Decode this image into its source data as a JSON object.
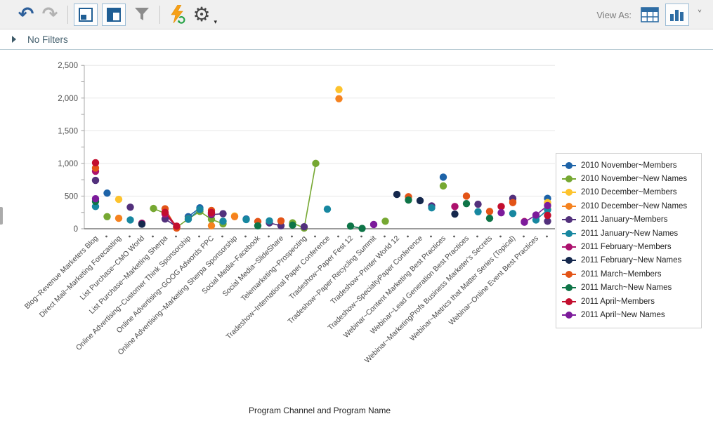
{
  "toolbar": {
    "view_as_label": "View As:",
    "icons": [
      "undo-icon",
      "redo-icon",
      "maximize-report-icon",
      "layout-panel-icon",
      "filter-funnel-icon",
      "run-refresh-icon",
      "settings-gear-icon",
      "view-as-table-icon",
      "view-as-chart-icon",
      "view-as-dropdown-chevron"
    ]
  },
  "filter_bar": {
    "label": "No Filters",
    "expander_icon": "right-triangle-icon"
  },
  "chart_data": {
    "type": "scatter",
    "title": "",
    "xlabel": "Program Channel and Program Name",
    "ylabel": "",
    "ylim": [
      0,
      2500
    ],
    "yticks": [
      0,
      500,
      1000,
      1500,
      2000,
      2500
    ],
    "ytick_labels": [
      "0",
      "500",
      "1,000",
      "1,500",
      "2,000",
      "2,500"
    ],
    "minor_tick_step": 250,
    "grid": true,
    "legend_position": "right",
    "categories": [
      "Blog~Revenue Marketers Blog",
      "Direct Mail~Marketing Forecasting",
      "List Purchase~CMO World",
      "List Purchase~Marketing Sherpa",
      "Online Advertising~Customer Think Sponsorship",
      "Online Advertising~GOOG Adwords PPC",
      "Online Advertising~Marketing Sherpa Sponsorship",
      "Social Media~Facebook",
      "Social Media~SlideShare",
      "Telemarketing~Prospecting",
      "Tradeshow~International Paper Conference",
      "Tradeshow~Paper Fest 12",
      "Tradeshow~Paper Recycling Summit",
      "Tradeshow~Printer World 12",
      "Tradeshow~SpecialtyPaper Conference",
      "Webinar~Content Marketing Best Practices",
      "Webinar~Lead Generation Best Practices",
      "Webinar~MarketingProfs Business Marketer's Secrets",
      "Webinar~Metrics that Matter Series (Topical)",
      "Webinar~Online Event Best Practices"
    ],
    "unlabeled_dot_ticks_between_categories": true,
    "series": [
      {
        "name": "2010 November~Members",
        "color": "#1D63A8",
        "points": [
          [
            2,
            545
          ],
          [
            9,
            185
          ],
          [
            10,
            320
          ],
          [
            14,
            150
          ],
          [
            31,
            790
          ],
          [
            40,
            465
          ]
        ]
      },
      {
        "name": "2010 November~New Names",
        "color": "#76A832",
        "points": [
          [
            2,
            185
          ],
          [
            6,
            310
          ],
          [
            7,
            235
          ],
          [
            8,
            20
          ],
          [
            9,
            150
          ],
          [
            10,
            265
          ],
          [
            11,
            145
          ],
          [
            12,
            75
          ],
          [
            18,
            90
          ],
          [
            19,
            10
          ],
          [
            20,
            1000
          ],
          [
            26,
            115
          ],
          [
            31,
            655
          ]
        ]
      },
      {
        "name": "2010 December~Members",
        "color": "#FDC32D",
        "points": [
          [
            3,
            450
          ],
          [
            13,
            195
          ],
          [
            22,
            2130
          ],
          [
            40,
            400
          ]
        ]
      },
      {
        "name": "2010 December~New Names",
        "color": "#F5821F",
        "points": [
          [
            3,
            160
          ],
          [
            11,
            45
          ],
          [
            13,
            185
          ],
          [
            22,
            1990
          ],
          [
            37,
            425
          ],
          [
            40,
            300
          ]
        ]
      },
      {
        "name": "2011 January~Members",
        "color": "#52307C",
        "points": [
          [
            1,
            740
          ],
          [
            4,
            330
          ],
          [
            7,
            150
          ],
          [
            8,
            30
          ],
          [
            11,
            215
          ],
          [
            12,
            230
          ],
          [
            16,
            90
          ],
          [
            17,
            45
          ],
          [
            19,
            30
          ],
          [
            30,
            350
          ],
          [
            34,
            375
          ],
          [
            37,
            465
          ],
          [
            40,
            115
          ]
        ]
      },
      {
        "name": "2011 January~New Names",
        "color": "#1787A0",
        "points": [
          [
            1,
            340
          ],
          [
            4,
            135
          ],
          [
            9,
            145
          ],
          [
            10,
            295
          ],
          [
            12,
            115
          ],
          [
            14,
            140
          ],
          [
            16,
            120
          ],
          [
            21,
            300
          ],
          [
            30,
            320
          ],
          [
            34,
            260
          ],
          [
            37,
            233
          ],
          [
            39,
            135
          ],
          [
            40,
            290
          ]
        ]
      },
      {
        "name": "2011 February~Members",
        "color": "#AC116D",
        "points": [
          [
            1,
            880
          ],
          [
            5,
            85
          ],
          [
            7,
            225
          ],
          [
            8,
            25
          ],
          [
            11,
            230
          ],
          [
            32,
            340
          ],
          [
            38,
            110
          ]
        ]
      },
      {
        "name": "2011 February~New Names",
        "color": "#15284D",
        "points": [
          [
            5,
            70
          ],
          [
            27,
            525
          ],
          [
            29,
            430
          ],
          [
            32,
            225
          ]
        ]
      },
      {
        "name": "2011 March~Members",
        "color": "#E35417",
        "points": [
          [
            1,
            930
          ],
          [
            7,
            305
          ],
          [
            8,
            10
          ],
          [
            11,
            280
          ],
          [
            15,
            110
          ],
          [
            17,
            120
          ],
          [
            28,
            490
          ],
          [
            33,
            500
          ],
          [
            35,
            265
          ],
          [
            37,
            400
          ]
        ]
      },
      {
        "name": "2011 March~New Names",
        "color": "#0E7447",
        "points": [
          [
            1,
            420
          ],
          [
            15,
            45
          ],
          [
            18,
            55
          ],
          [
            23,
            40
          ],
          [
            24,
            5
          ],
          [
            28,
            440
          ],
          [
            33,
            385
          ],
          [
            35,
            160
          ]
        ]
      },
      {
        "name": "2011 April~Members",
        "color": "#C30E2E",
        "points": [
          [
            1,
            1010
          ],
          [
            7,
            250
          ],
          [
            8,
            40
          ],
          [
            11,
            250
          ],
          [
            36,
            340
          ],
          [
            40,
            205
          ]
        ]
      },
      {
        "name": "2011 April~New Names",
        "color": "#7C1B9B",
        "points": [
          [
            1,
            460
          ],
          [
            25,
            65
          ],
          [
            36,
            245
          ],
          [
            38,
            100
          ],
          [
            39,
            210
          ],
          [
            40,
            355
          ]
        ]
      }
    ]
  }
}
